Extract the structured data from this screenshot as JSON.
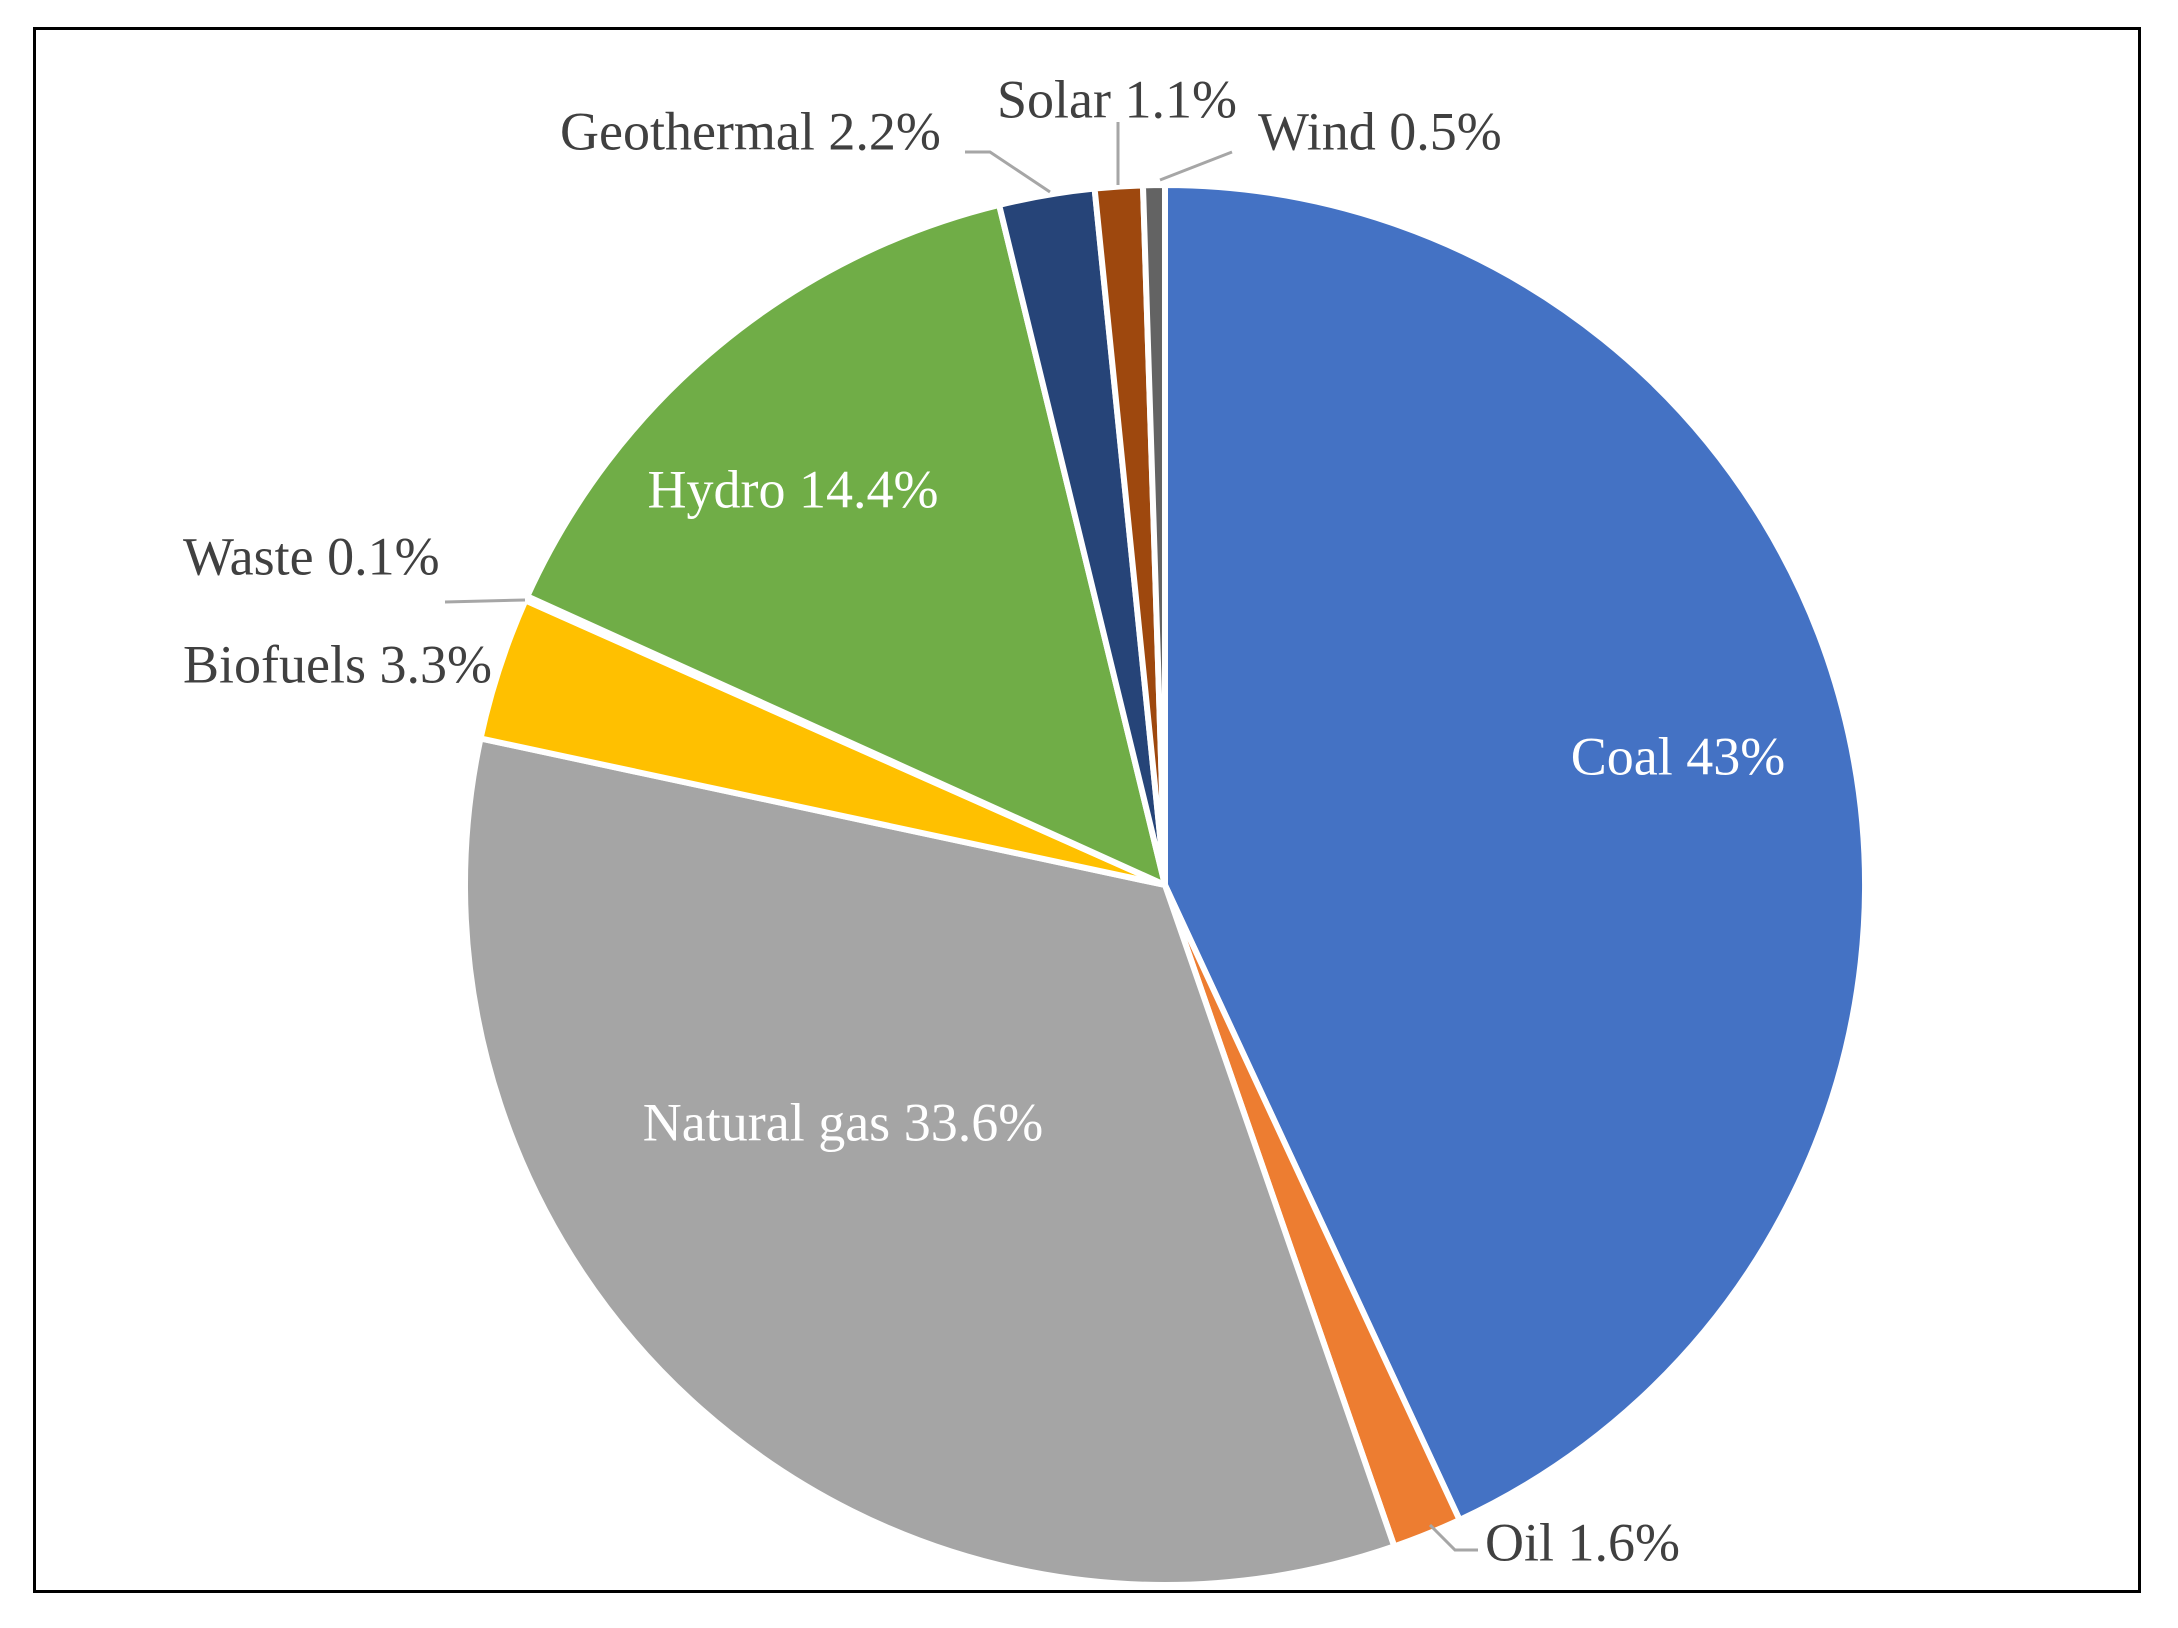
{
  "chart_data": {
    "type": "pie",
    "title": "",
    "start_angle_deg": 0,
    "direction": "clockwise",
    "slices": [
      {
        "label": "Coal",
        "value": 43.0,
        "display": "Coal 43%",
        "color": "#4472C4",
        "label_color": "#ffffff",
        "label_placement": "inside"
      },
      {
        "label": "Oil",
        "value": 1.6,
        "display": "Oil 1.6%",
        "color": "#ED7D31",
        "label_color": "#404040",
        "label_placement": "outside"
      },
      {
        "label": "Natural gas",
        "value": 33.6,
        "display": "Natural gas 33.6%",
        "color": "#A5A5A5",
        "label_color": "#ffffff",
        "label_placement": "inside"
      },
      {
        "label": "Biofuels",
        "value": 3.3,
        "display": "Biofuels 3.3%",
        "color": "#FFC000",
        "label_color": "#404040",
        "label_placement": "outside"
      },
      {
        "label": "Waste",
        "value": 0.1,
        "display": "Waste 0.1%",
        "color": "#5B9BD5",
        "label_color": "#404040",
        "label_placement": "outside"
      },
      {
        "label": "Hydro",
        "value": 14.4,
        "display": "Hydro 14.4%",
        "color": "#70AD47",
        "label_color": "#ffffff",
        "label_placement": "inside"
      },
      {
        "label": "Geothermal",
        "value": 2.2,
        "display": "Geothermal 2.2%",
        "color": "#264478",
        "label_color": "#404040",
        "label_placement": "outside"
      },
      {
        "label": "Solar",
        "value": 1.1,
        "display": "Solar 1.1%",
        "color": "#9E480E",
        "label_color": "#404040",
        "label_placement": "outside"
      },
      {
        "label": "Wind",
        "value": 0.5,
        "display": "Wind 0.5%",
        "color": "#636363",
        "label_color": "#404040",
        "label_placement": "outside"
      }
    ]
  }
}
